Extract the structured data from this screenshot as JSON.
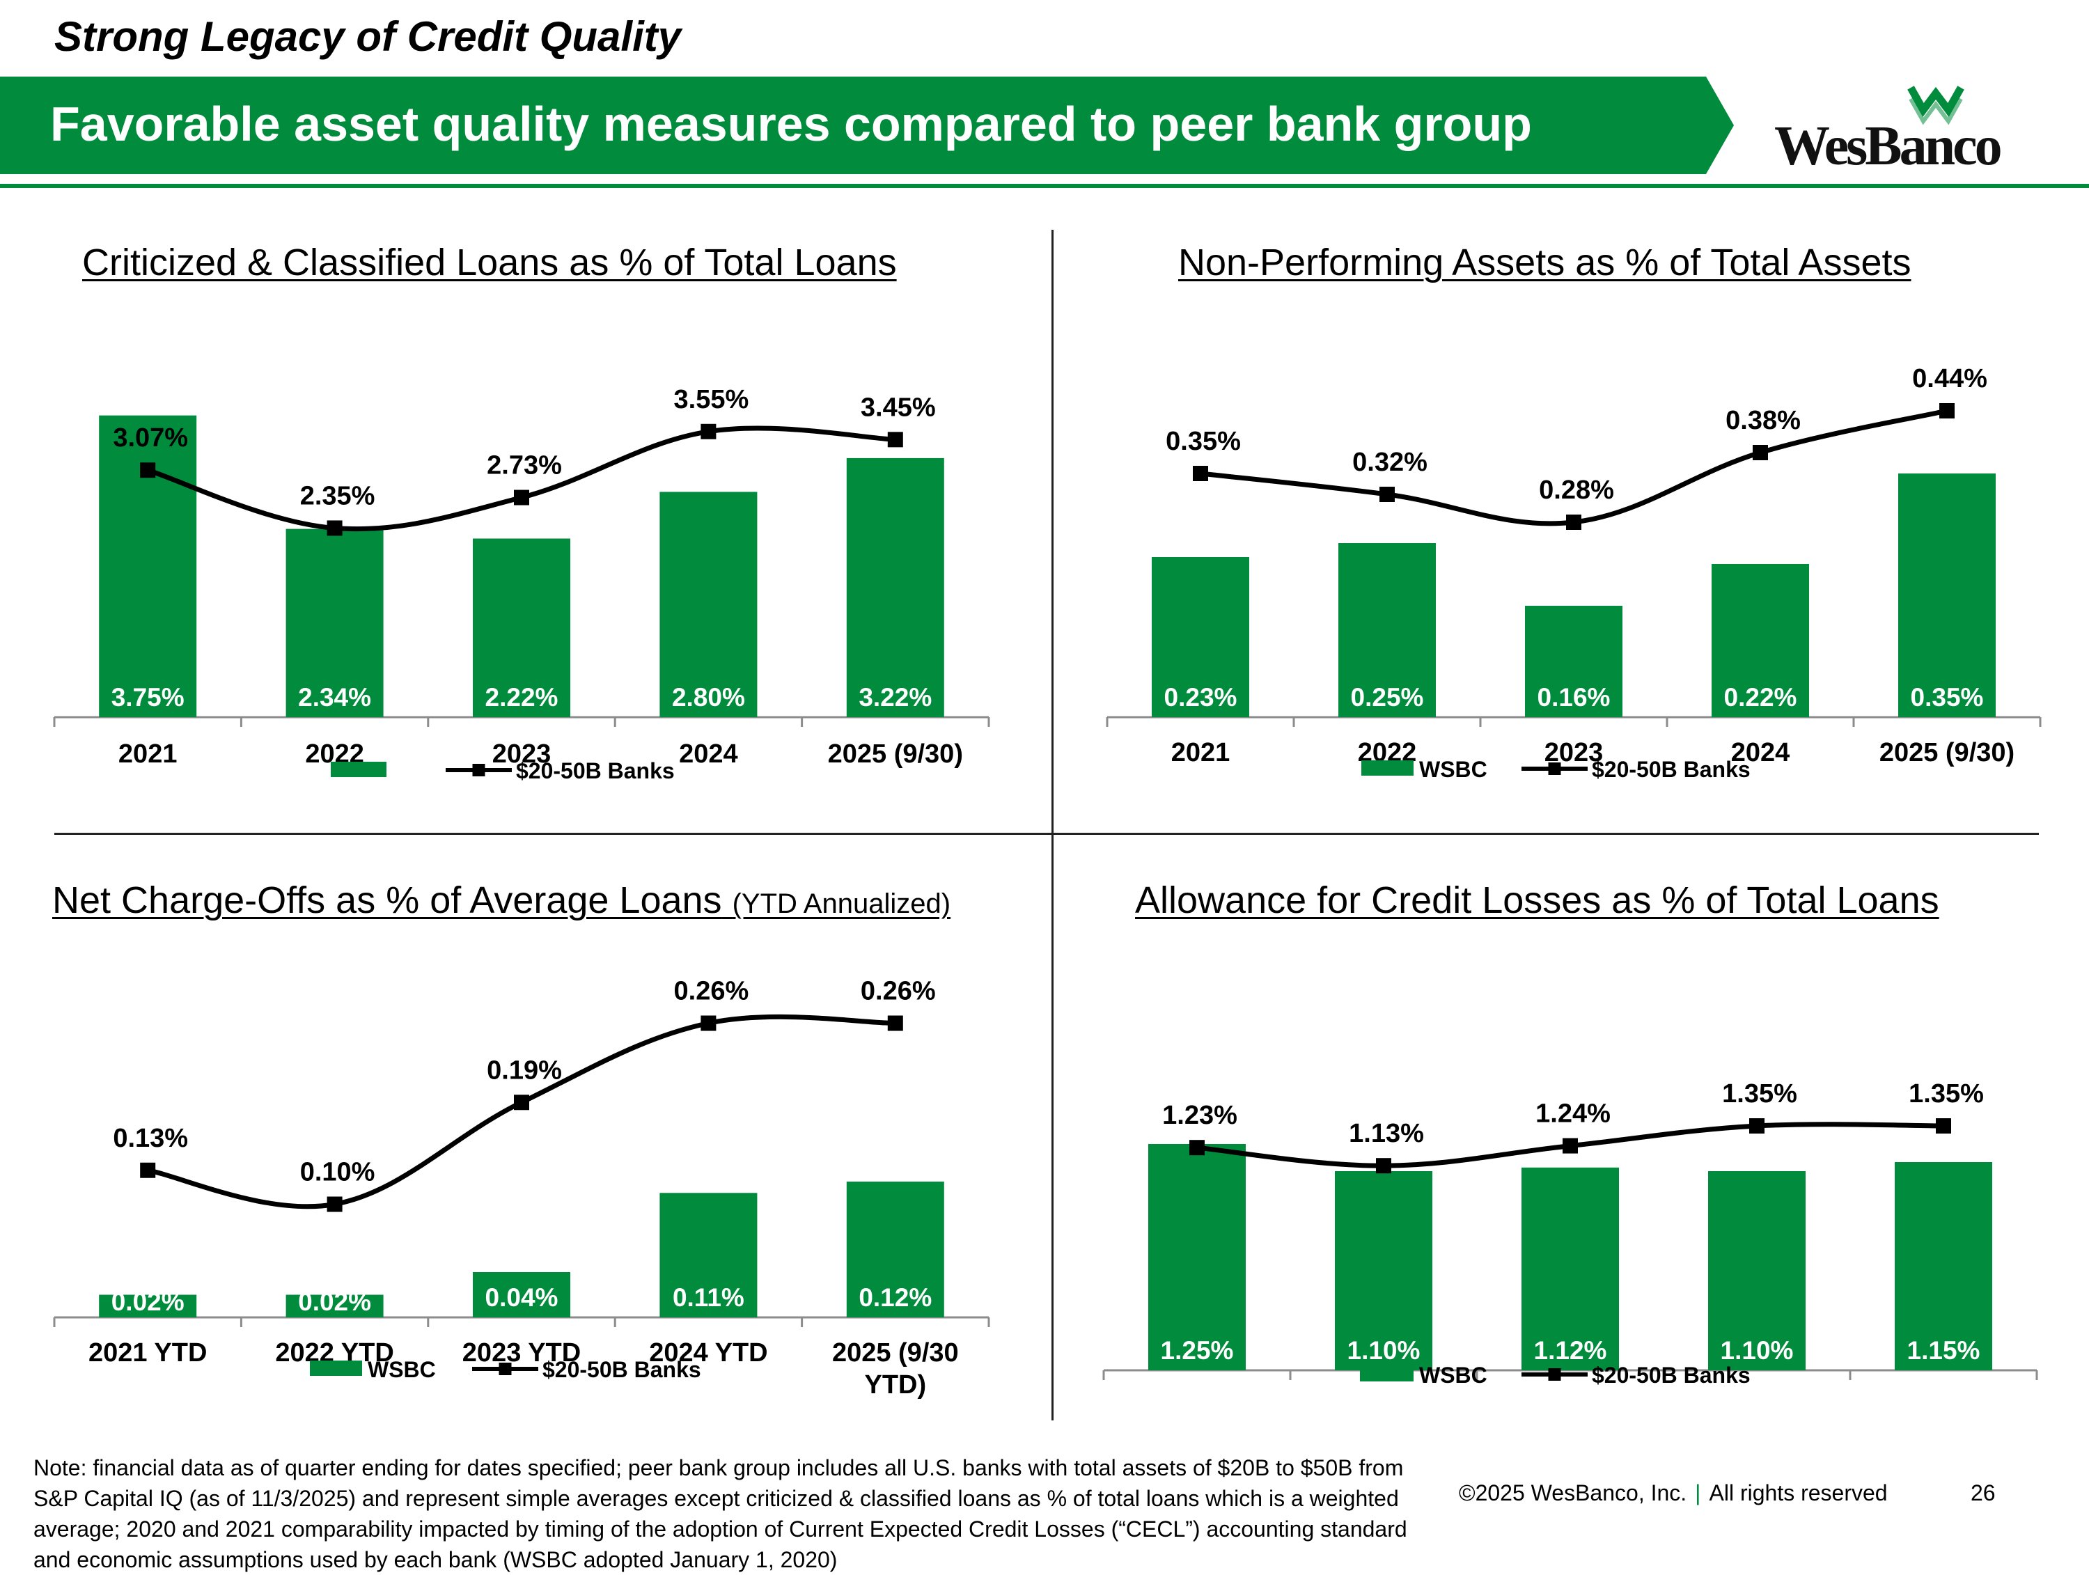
{
  "header": {
    "heading": "Strong Legacy of Credit Quality",
    "banner_title": "Favorable asset quality measures compared to peer bank group",
    "logo_text": "WesBanco",
    "brand_color": "#008c3c"
  },
  "charts": [
    {
      "title": "Criticized & Classified Loans as % of Total Loans",
      "title_suffix": "",
      "chart_data": {
        "type": "bar",
        "categories": [
          "2021",
          "2022",
          "2023",
          "2024",
          "2025 (9/30)"
        ],
        "series": [
          {
            "name": "",
            "kind": "bar",
            "values": [
              3.75,
              2.34,
              2.22,
              2.8,
              3.22
            ],
            "labels": [
              "3.75%",
              "2.34%",
              "2.22%",
              "2.80%",
              "3.22%"
            ]
          },
          {
            "name": "$20-50B Banks",
            "kind": "line",
            "values": [
              3.07,
              2.35,
              2.73,
              3.55,
              3.45
            ],
            "labels": [
              "3.07%",
              "2.35%",
              "2.73%",
              "3.55%",
              "3.45%"
            ]
          }
        ],
        "ylim": [
          0,
          4.5
        ],
        "legend_position": "bottom"
      }
    },
    {
      "title": "Non-Performing Assets as % of Total Assets",
      "title_suffix": "",
      "chart_data": {
        "type": "bar",
        "categories": [
          "2021",
          "2022",
          "2023",
          "2024",
          "2025 (9/30)"
        ],
        "series": [
          {
            "name": "WSBC",
            "kind": "bar",
            "values": [
              0.23,
              0.25,
              0.16,
              0.22,
              0.35
            ],
            "labels": [
              "0.23%",
              "0.25%",
              "0.16%",
              "0.22%",
              "0.35%"
            ]
          },
          {
            "name": "$20-50B Banks",
            "kind": "line",
            "values": [
              0.35,
              0.32,
              0.28,
              0.38,
              0.44
            ],
            "labels": [
              "0.35%",
              "0.32%",
              "0.28%",
              "0.38%",
              "0.44%"
            ]
          }
        ],
        "ylim": [
          0,
          0.52
        ],
        "legend_position": "bottom"
      }
    },
    {
      "title": "Net Charge-Offs as % of Average Loans",
      "title_suffix": "(YTD Annualized)",
      "chart_data": {
        "type": "bar",
        "categories": [
          "2021 YTD",
          "2022 YTD",
          "2023 YTD",
          "2024 YTD",
          "2025 (9/30 YTD)"
        ],
        "series": [
          {
            "name": "WSBC",
            "kind": "bar",
            "values": [
              0.02,
              0.02,
              0.04,
              0.11,
              0.12
            ],
            "labels": [
              "0.02%",
              "0.02%",
              "0.04%",
              "0.11%",
              "0.12%"
            ]
          },
          {
            "name": "$20-50B Banks",
            "kind": "line",
            "values": [
              0.13,
              0.1,
              0.19,
              0.26,
              0.26
            ],
            "labels": [
              "0.13%",
              "0.10%",
              "0.19%",
              "0.26%",
              "0.26%"
            ]
          }
        ],
        "ylim": [
          0,
          0.32
        ],
        "legend_position": "bottom"
      }
    },
    {
      "title": "Allowance for Credit Losses as % of Total Loans",
      "title_suffix": "",
      "chart_data": {
        "type": "bar",
        "categories": [
          "",
          "",
          "",
          "",
          ""
        ],
        "series": [
          {
            "name": "WSBC",
            "kind": "bar",
            "values": [
              1.25,
              1.1,
              1.12,
              1.1,
              1.15
            ],
            "labels": [
              "1.25%",
              "1.10%",
              "1.12%",
              "1.10%",
              "1.15%"
            ]
          },
          {
            "name": "$20-50B Banks",
            "kind": "line",
            "values": [
              1.23,
              1.13,
              1.24,
              1.35,
              1.35
            ],
            "labels": [
              "1.23%",
              "1.13%",
              "1.24%",
              "1.35%",
              "1.35%"
            ]
          }
        ],
        "ylim": [
          0,
          2.0
        ],
        "legend_position": "bottom"
      }
    }
  ],
  "footer": {
    "note": "Note: financial data as of quarter ending for dates specified; peer bank group includes all U.S. banks with total assets of $20B to $50B from S&P Capital IQ (as of 11/3/2025) and represent simple averages except criticized & classified loans as % of total loans which is a weighted average; 2020 and 2021 comparability impacted by timing of the adoption of Current Expected Credit Losses (“CECL”) accounting standard and economic assumptions used by each bank (WSBC adopted January 1, 2020)",
    "copyright": "©2025 WesBanco, Inc.",
    "separator": "|",
    "rights": "All rights reserved",
    "page_number": "26"
  }
}
